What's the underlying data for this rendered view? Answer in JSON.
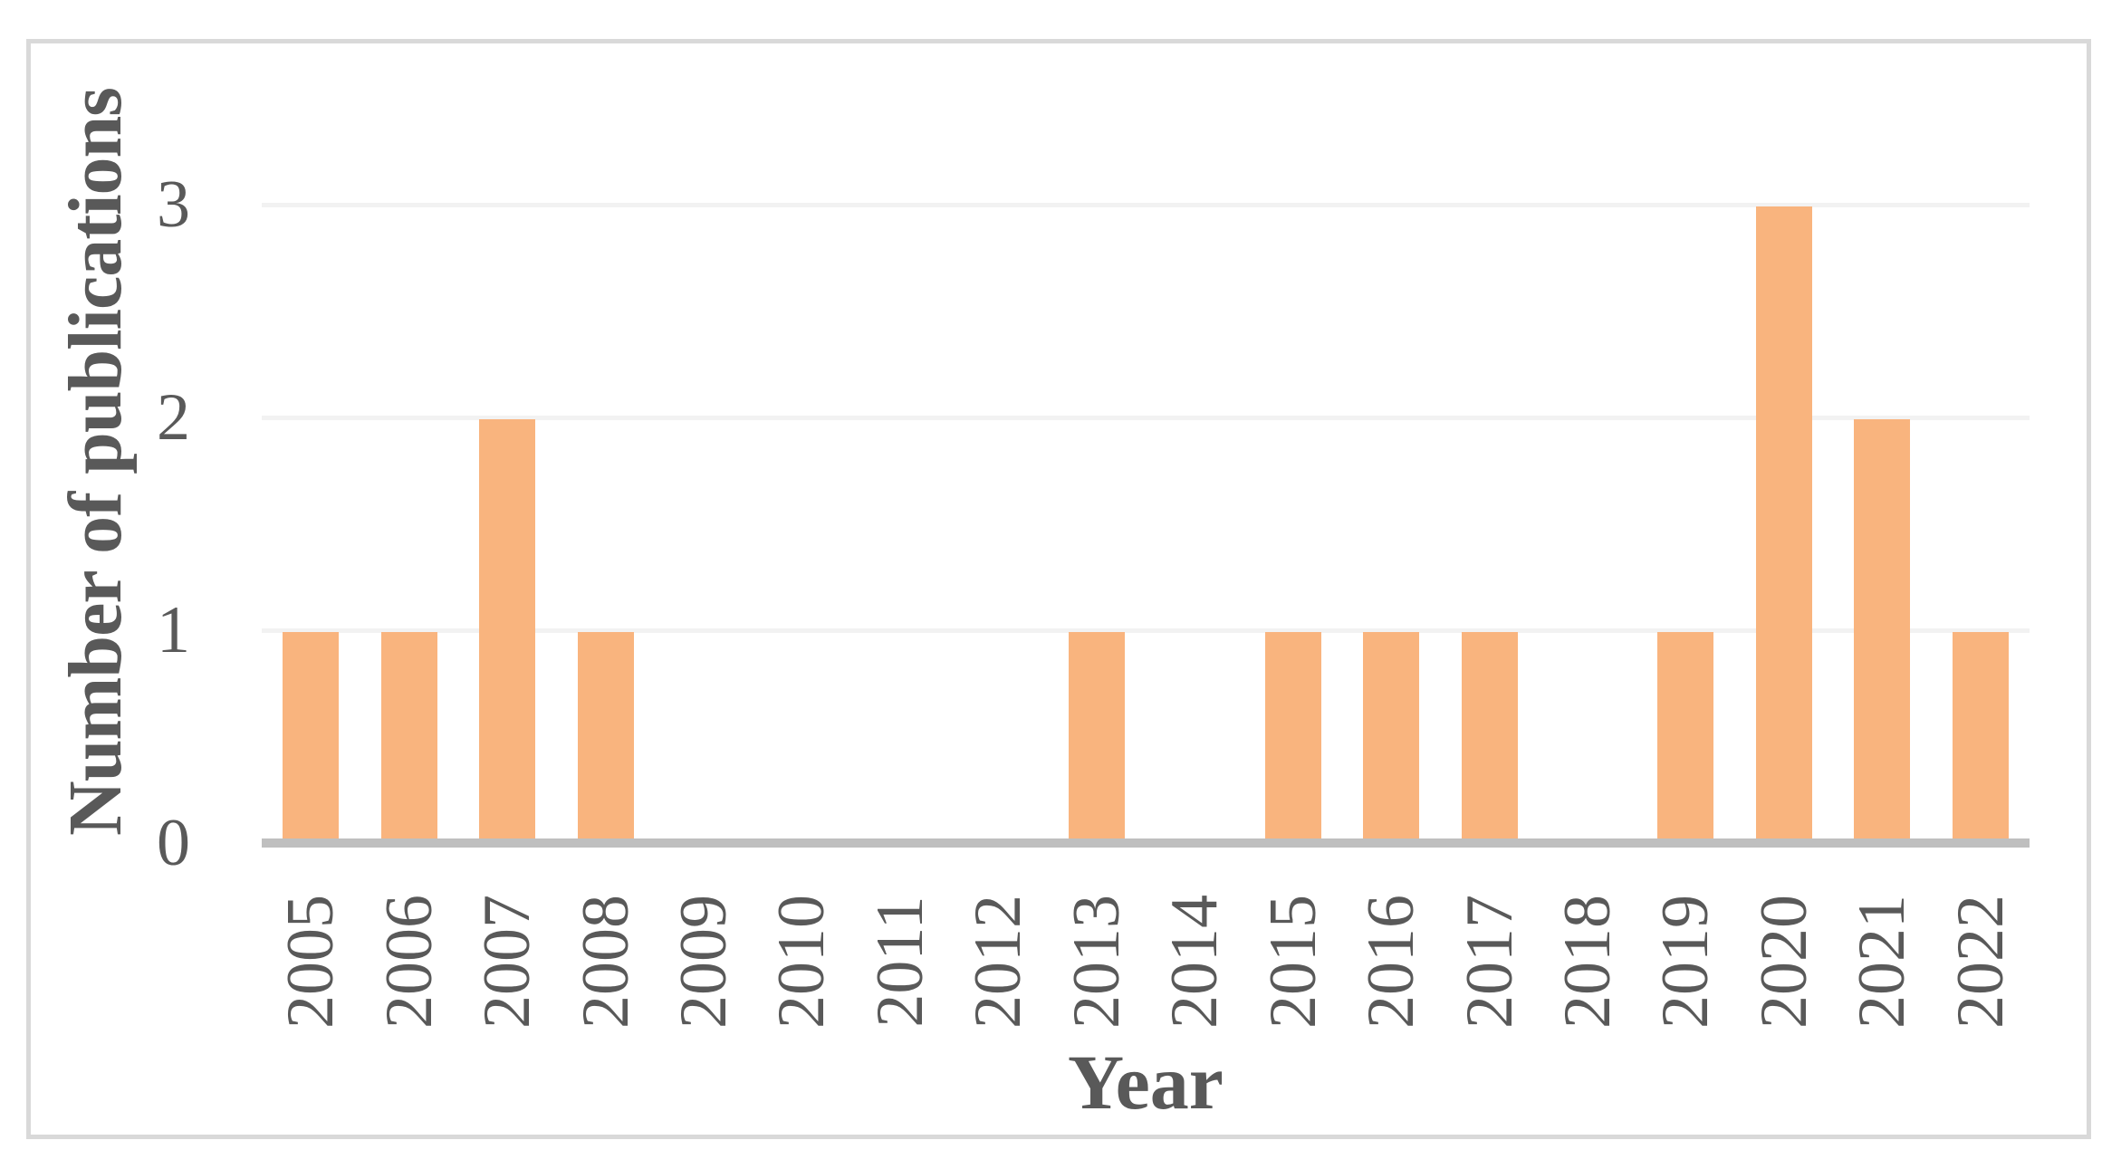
{
  "figure": {
    "background_color": "#ffffff",
    "border_color": "#d9d9d9"
  },
  "chart_data": {
    "type": "bar",
    "title": "",
    "xlabel": "Year",
    "ylabel": "Number of publications",
    "categories": [
      "2005",
      "2006",
      "2007",
      "2008",
      "2009",
      "2010",
      "2011",
      "2012",
      "2013",
      "2014",
      "2015",
      "2016",
      "2017",
      "2018",
      "2019",
      "2020",
      "2021",
      "2022"
    ],
    "values": [
      1,
      1,
      2,
      1,
      0,
      0,
      0,
      0,
      1,
      0,
      1,
      1,
      1,
      0,
      1,
      3,
      2,
      1
    ],
    "y_ticks": [
      0,
      1,
      2,
      3
    ],
    "ylim": [
      0,
      3
    ],
    "grid": "horizontal",
    "legend": "none",
    "bar_color": "#f9b47e",
    "gridline_color": "#f2f2f2",
    "axis_line_color": "#bfbfbf",
    "text_color": "#595959"
  }
}
